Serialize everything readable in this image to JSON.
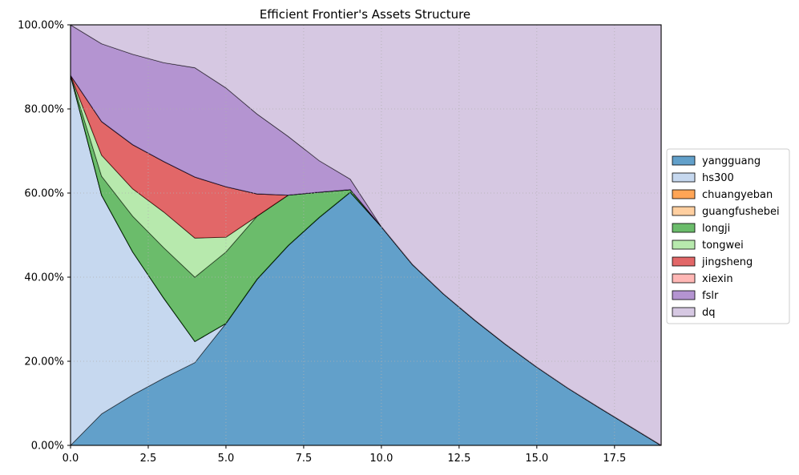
{
  "chart_data": {
    "type": "area",
    "stacked": true,
    "title": "Efficient Frontier's Assets Structure",
    "xlabel": "",
    "ylabel": "",
    "xlim": [
      0,
      19
    ],
    "ylim": [
      0,
      1
    ],
    "x_ticks": [
      0,
      2.5,
      5,
      7.5,
      10,
      12.5,
      15,
      17.5
    ],
    "x_tick_labels": [
      "0.0",
      "2.5",
      "5.0",
      "7.5",
      "10.0",
      "12.5",
      "15.0",
      "17.5"
    ],
    "y_ticks": [
      0,
      0.2,
      0.4,
      0.6,
      0.8,
      1.0
    ],
    "y_tick_labels": [
      "0.00%",
      "20.00%",
      "40.00%",
      "60.00%",
      "80.00%",
      "100.00%"
    ],
    "grid": true,
    "legend_position": "center-right outside",
    "x": [
      0,
      1,
      2,
      3,
      4,
      5,
      6,
      7,
      8,
      9,
      10,
      11,
      12,
      13,
      14,
      15,
      16,
      17,
      18,
      19
    ],
    "series": [
      {
        "name": "yangguang",
        "color": "#1f77b4",
        "values": [
          0.0,
          0.075,
          0.12,
          0.16,
          0.197,
          0.29,
          0.395,
          0.475,
          0.542,
          0.602,
          0.52,
          0.43,
          0.36,
          0.298,
          0.24,
          0.186,
          0.136,
          0.09,
          0.045,
          0.0
        ]
      },
      {
        "name": "hs300",
        "color": "#aec7e8",
        "values": [
          0.88,
          0.52,
          0.34,
          0.19,
          0.05,
          0.0,
          0.0,
          0.0,
          0.0,
          0.0,
          0.0,
          0.0,
          0.0,
          0.0,
          0.0,
          0.0,
          0.0,
          0.0,
          0.0,
          0.0
        ]
      },
      {
        "name": "chuangyeban",
        "color": "#ff7f0e",
        "values": [
          0,
          0,
          0,
          0,
          0,
          0,
          0,
          0,
          0,
          0,
          0,
          0,
          0,
          0,
          0,
          0,
          0,
          0,
          0,
          0
        ]
      },
      {
        "name": "guangfushebei",
        "color": "#ffbb78",
        "values": [
          0,
          0,
          0,
          0,
          0,
          0,
          0,
          0,
          0,
          0,
          0,
          0,
          0,
          0,
          0,
          0,
          0,
          0,
          0,
          0
        ]
      },
      {
        "name": "longji",
        "color": "#2ca02c",
        "values": [
          0.0,
          0.045,
          0.085,
          0.12,
          0.153,
          0.17,
          0.15,
          0.12,
          0.06,
          0.006,
          0.0,
          0.0,
          0.0,
          0.0,
          0.0,
          0.0,
          0.0,
          0.0,
          0.0,
          0.0
        ]
      },
      {
        "name": "tongwei",
        "color": "#98df8a",
        "values": [
          0.0,
          0.05,
          0.065,
          0.085,
          0.093,
          0.035,
          0.0,
          0.0,
          0.0,
          0.0,
          0.0,
          0.0,
          0.0,
          0.0,
          0.0,
          0.0,
          0.0,
          0.0,
          0.0,
          0.0
        ]
      },
      {
        "name": "jingsheng",
        "color": "#d62728",
        "values": [
          0.0,
          0.08,
          0.105,
          0.12,
          0.145,
          0.12,
          0.053,
          0.0,
          0.0,
          0.0,
          0.0,
          0.0,
          0.0,
          0.0,
          0.0,
          0.0,
          0.0,
          0.0,
          0.0,
          0.0
        ]
      },
      {
        "name": "xiexin",
        "color": "#ff9896",
        "values": [
          0,
          0,
          0,
          0,
          0,
          0,
          0,
          0,
          0,
          0,
          0,
          0,
          0,
          0,
          0,
          0,
          0,
          0,
          0,
          0
        ]
      },
      {
        "name": "fslr",
        "color": "#9467bd",
        "values": [
          0.12,
          0.185,
          0.215,
          0.235,
          0.26,
          0.235,
          0.19,
          0.14,
          0.075,
          0.025,
          0.0,
          0.0,
          0.0,
          0.0,
          0.0,
          0.0,
          0.0,
          0.0,
          0.0,
          0.0
        ]
      },
      {
        "name": "dq",
        "color": "#c5b0d5",
        "values": [
          0.0,
          0.045,
          0.07,
          0.09,
          0.102,
          0.15,
          0.212,
          0.265,
          0.323,
          0.367,
          0.48,
          0.57,
          0.64,
          0.702,
          0.76,
          0.814,
          0.864,
          0.91,
          0.955,
          1.0
        ]
      }
    ]
  }
}
